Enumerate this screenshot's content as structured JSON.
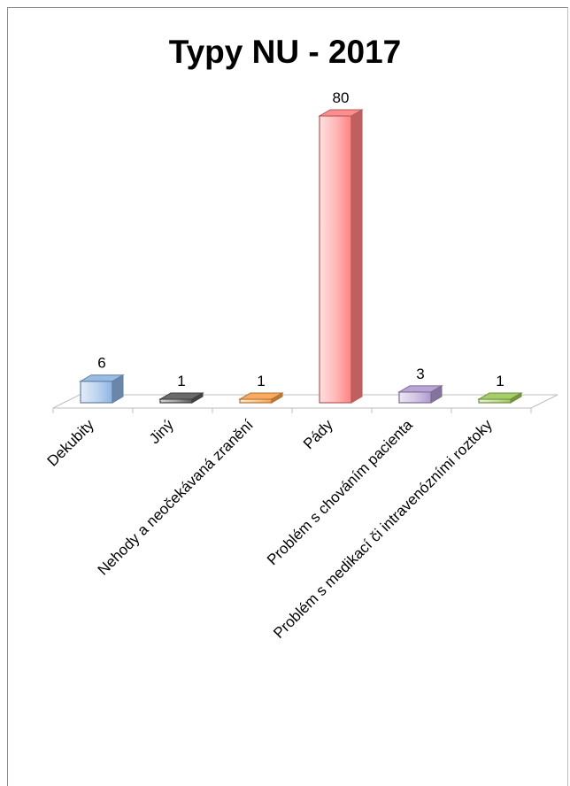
{
  "chart_data": {
    "type": "bar",
    "title": "Typy NU - 2017",
    "categories": [
      "Dekubity",
      "Jiný",
      "Nehody a neočekávaná zranění",
      "Pády",
      "Problém s chováním pacienta",
      "Problém s medikací či intravenózními roztoky"
    ],
    "values": [
      6,
      1,
      1,
      80,
      3,
      1
    ],
    "data_labels": [
      "6",
      "1",
      "1",
      "80",
      "3",
      "1"
    ],
    "colors": [
      "#8db4e2",
      "#595959",
      "#f9a14a",
      "#ff8080",
      "#b09ad0",
      "#9bc95a"
    ],
    "xlabel": "",
    "ylabel": "",
    "ylim": [
      0,
      80
    ],
    "grid": false,
    "legend": "none",
    "style": "3d-column"
  }
}
